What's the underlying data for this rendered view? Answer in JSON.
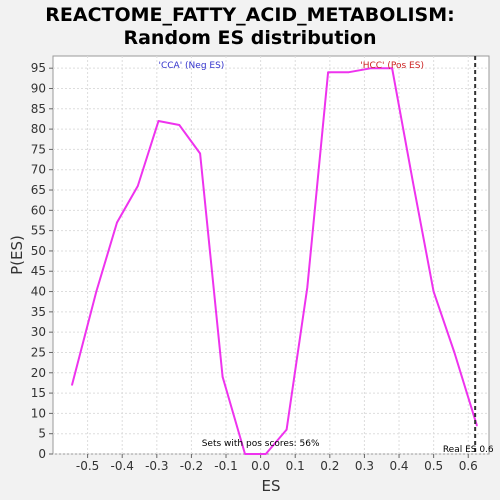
{
  "title_lines": [
    "REACTOME_FATTY_ACID_METABOLISM:",
    "Random ES distribution"
  ],
  "chart_data": {
    "type": "line",
    "title": "REACTOME_FATTY_ACID_METABOLISM: Random ES distribution",
    "xlabel": "ES",
    "ylabel": "P(ES)",
    "xlim": [
      -0.6,
      0.66
    ],
    "ylim": [
      0,
      98
    ],
    "x_ticks": [
      -0.5,
      -0.4,
      -0.3,
      -0.2,
      -0.1,
      0.0,
      0.1,
      0.2,
      0.3,
      0.4,
      0.5,
      0.6
    ],
    "x_tick_labels": [
      "-0.5",
      "-0.4",
      "-0.3",
      "-0.2",
      "-0.1",
      "0.0",
      "0.1",
      "0.2",
      "0.3",
      "0.4",
      "0.5",
      "0.6"
    ],
    "y_ticks": [
      0,
      5,
      10,
      15,
      20,
      25,
      30,
      35,
      40,
      45,
      50,
      55,
      60,
      65,
      70,
      75,
      80,
      85,
      90,
      95
    ],
    "grid": true,
    "series": [
      {
        "color": "#ee33ee",
        "x": [
          -0.545,
          -0.475,
          -0.415,
          -0.355,
          -0.295,
          -0.235,
          -0.175,
          -0.11,
          -0.045,
          0.015,
          0.075,
          0.135,
          0.195,
          0.255,
          0.32,
          0.38,
          0.44,
          0.5,
          0.56,
          0.625
        ],
        "y": [
          17,
          40,
          57,
          66,
          82,
          81,
          74,
          19,
          0,
          0,
          6,
          41,
          94,
          94,
          95,
          95,
          67,
          40,
          25,
          7
        ]
      }
    ],
    "real_es": 0.62,
    "real_es_color": "#333333",
    "annotations": {
      "neg": {
        "text": "'CCA' (Neg ES)",
        "color": "#3333cc",
        "x": -0.2,
        "y": 96
      },
      "pos": {
        "text": "'HCC' (Pos ES)",
        "color": "#cc2222",
        "x": 0.38,
        "y": 96
      },
      "sets": {
        "text": "Sets with pos scores: 56%",
        "color": "#000000",
        "x": 0.0,
        "y": 1.5
      },
      "real": {
        "text": "Real ES 0.6",
        "color": "#000000",
        "x": 0.6,
        "y": 0.5
      }
    }
  }
}
